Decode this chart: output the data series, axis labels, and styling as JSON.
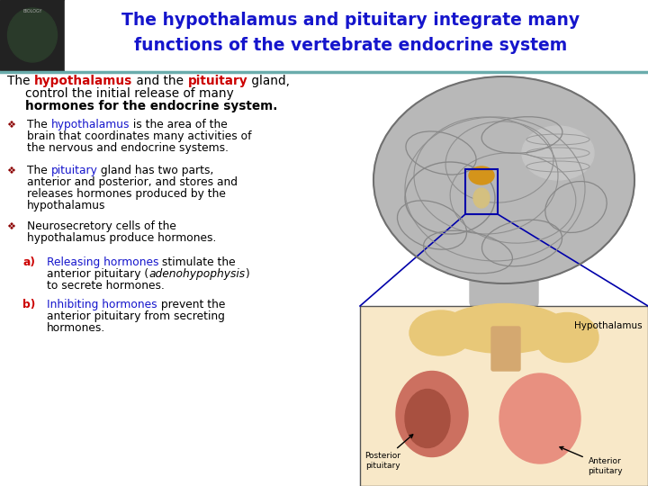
{
  "title_line1": "The hypothalamus and pituitary integrate many",
  "title_line2": "functions of the vertebrate endocrine system",
  "title_color": "#1515CC",
  "title_fontsize": 13.5,
  "separator_color": "#6AACAC",
  "body_bg": "#FFFFFF",
  "intro_parts_line1": [
    [
      "The ",
      "#000000",
      false
    ],
    [
      "hypothalamus",
      "#CC0000",
      true
    ],
    [
      " and the ",
      "#000000",
      false
    ],
    [
      "pituitary",
      "#CC0000",
      true
    ],
    [
      " gland,",
      "#000000",
      false
    ]
  ],
  "intro_line2": "control the initial release of many",
  "intro_line3": "hormones for the endocrine system.",
  "bullet_marker_color": "#8B0000",
  "bullet1_parts": [
    [
      "The ",
      "#000000"
    ],
    [
      "hypothalamus",
      "#1515CC"
    ],
    [
      " is the area of the",
      "#000000"
    ]
  ],
  "bullet1_l2": "brain that coordinates many activities of",
  "bullet1_l3": "the nervous and endocrine systems.",
  "bullet2_parts": [
    [
      "The ",
      "#000000"
    ],
    [
      "pituitary",
      "#1515CC"
    ],
    [
      " gland has two parts,",
      "#000000"
    ]
  ],
  "bullet2_l2": "anterior and posterior, and stores and",
  "bullet2_l3": "releases hormones produced by the",
  "bullet2_l4": "hypothalamus",
  "bullet3_l1": "Neurosecretory cells of the",
  "bullet3_l2": "hypothalamus produce hormones.",
  "sub_a_label": "a)",
  "sub_a_parts": [
    [
      "Releasing hormones",
      "#1515CC"
    ],
    [
      " stimulate the",
      "#000000"
    ]
  ],
  "sub_a_l2a": "anterior pituitary (",
  "sub_a_l2b": "adenohypophysis",
  "sub_a_l2c": ")",
  "sub_a_l3": "to secrete hormones.",
  "sub_b_label": "b)",
  "sub_b_parts": [
    [
      "Inhibiting hormones",
      "#1515CC"
    ],
    [
      " prevent the",
      "#000000"
    ]
  ],
  "sub_b_l2": "anterior pituitary from secreting",
  "sub_b_l3": "hormones.",
  "label_color": "#CC0000",
  "fs_intro": 9.8,
  "fs_body": 8.8,
  "fs_small": 7.5
}
